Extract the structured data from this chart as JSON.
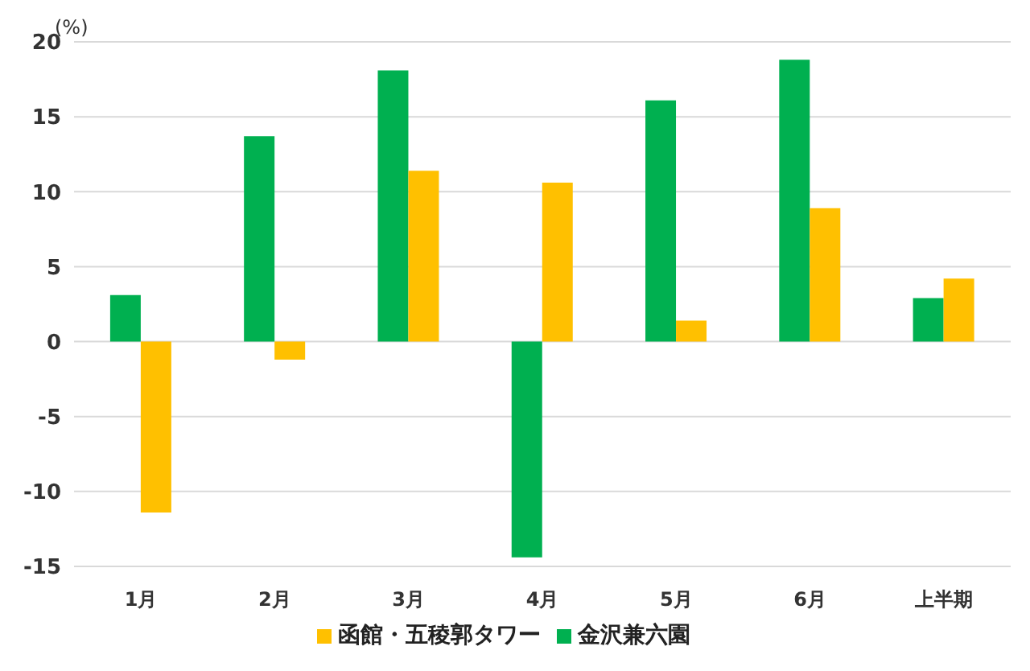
{
  "chart_data": {
    "type": "bar",
    "ylabel": "(%)",
    "categories": [
      "1月",
      "2月",
      "3月",
      "4月",
      "5月",
      "6月",
      "上半期"
    ],
    "series": [
      {
        "name": "金沢兼六園",
        "color": "#00b050",
        "values": [
          3.1,
          13.7,
          18.1,
          -14.4,
          16.1,
          18.8,
          2.9
        ]
      },
      {
        "name": "函館・五稜郭タワー",
        "color": "#ffc000",
        "values": [
          -11.4,
          -1.2,
          11.4,
          10.6,
          1.4,
          8.9,
          4.2
        ]
      }
    ],
    "ylim": [
      -15,
      20
    ],
    "yticks": [
      -15,
      -10,
      -5,
      0,
      5,
      10,
      15,
      20
    ],
    "grid": "y",
    "legend": "bottom"
  }
}
